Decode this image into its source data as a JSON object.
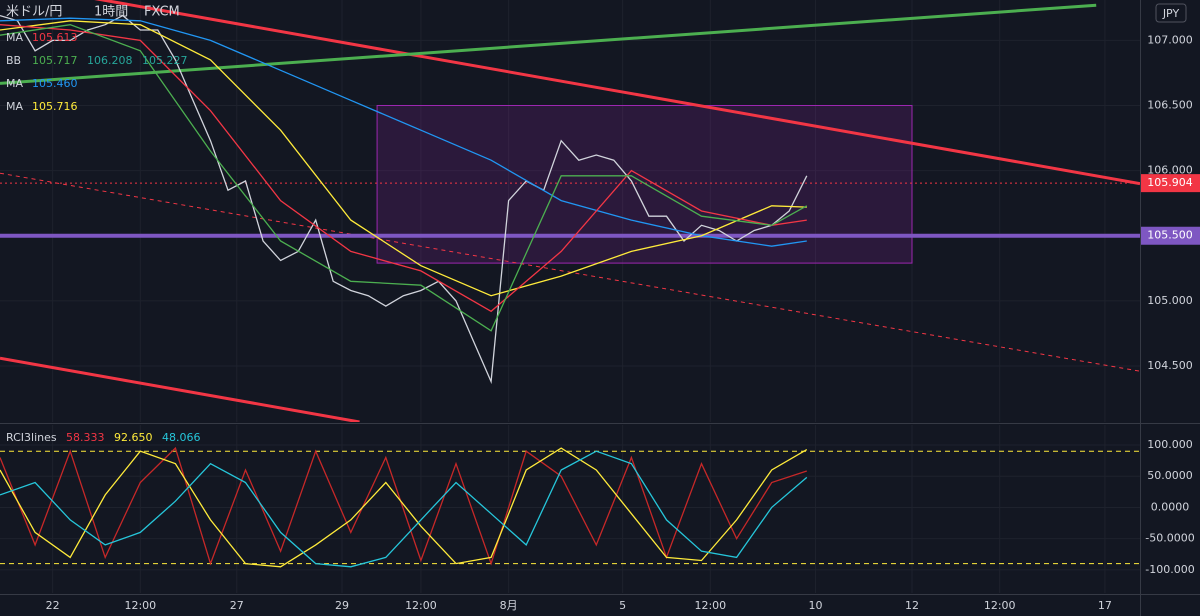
{
  "header": {
    "title": "米ドル/円",
    "interval": "1時間",
    "source": "FXCM",
    "currency": "JPY"
  },
  "chart_data": [
    {
      "type": "line",
      "xlim": [
        0,
        130
      ],
      "xticks": [
        {
          "value": 6,
          "label": "22"
        },
        {
          "value": 16,
          "label": "12:00"
        },
        {
          "value": 27,
          "label": "27"
        },
        {
          "value": 39,
          "label": "29"
        },
        {
          "value": 48,
          "label": "12:00"
        },
        {
          "value": 58,
          "label": "8月"
        },
        {
          "value": 71,
          "label": "5"
        },
        {
          "value": 81,
          "label": "12:00"
        },
        {
          "value": 93,
          "label": "10"
        },
        {
          "value": 104,
          "label": "12"
        },
        {
          "value": 114,
          "label": "12:00"
        },
        {
          "value": 126,
          "label": "17"
        }
      ],
      "ylim": [
        104.07,
        107.31
      ],
      "yticks": [
        {
          "value": 104.5,
          "label": "104.500"
        },
        {
          "value": 105,
          "label": "105.000"
        },
        {
          "value": 105.5,
          "label": "105.500"
        },
        {
          "value": 106,
          "label": "106.000"
        },
        {
          "value": 106.5,
          "label": "106.500"
        },
        {
          "value": 107,
          "label": "107.000"
        }
      ],
      "grid": true,
      "legend": [
        {
          "name": "MA",
          "readouts": [
            {
              "text": "105.613",
              "color": "#f23645"
            }
          ]
        },
        {
          "name": "BB",
          "readouts": [
            {
              "text": "105.717",
              "color": "#4caf50"
            },
            {
              "text": "106.208",
              "color": "#26a69a"
            },
            {
              "text": "105.227",
              "color": "#26a69a"
            }
          ]
        },
        {
          "name": "MA",
          "readouts": [
            {
              "text": "105.460",
              "color": "#2196f3"
            }
          ]
        },
        {
          "name": "MA",
          "readouts": [
            {
              "text": "105.716",
              "color": "#ffeb3b"
            }
          ]
        }
      ],
      "series": [
        {
          "color": "#d1d4dc",
          "x": [
            0,
            2,
            4,
            6,
            8,
            10,
            12,
            14,
            16,
            18,
            20,
            22,
            24,
            26,
            28,
            30,
            32,
            34,
            36,
            38,
            40,
            42,
            44,
            46,
            48,
            50,
            52,
            54,
            56,
            58,
            60,
            62,
            64,
            66,
            68,
            70,
            72,
            74,
            76,
            78,
            80,
            82,
            84,
            86,
            88,
            90,
            92
          ],
          "values": [
            107.19,
            107.15,
            106.92,
            107.0,
            107.0,
            107.08,
            107.12,
            107.19,
            107.08,
            107.08,
            106.85,
            106.54,
            106.23,
            105.85,
            105.92,
            105.46,
            105.31,
            105.38,
            105.62,
            105.15,
            105.08,
            105.04,
            104.96,
            105.04,
            105.08,
            105.15,
            105.0,
            104.69,
            104.38,
            105.77,
            105.92,
            105.85,
            106.23,
            106.08,
            106.12,
            106.08,
            105.92,
            105.65,
            105.65,
            105.46,
            105.58,
            105.54,
            105.46,
            105.54,
            105.58,
            105.69,
            105.96
          ]
        },
        {
          "color": "#2196f3",
          "x": [
            0,
            8,
            16,
            24,
            32,
            40,
            48,
            56,
            64,
            72,
            80,
            88,
            92
          ],
          "values": [
            107.15,
            107.17,
            107.15,
            107.0,
            106.77,
            106.54,
            106.31,
            106.08,
            105.77,
            105.62,
            105.5,
            105.42,
            105.46
          ]
        },
        {
          "color": "#ffeb3b",
          "x": [
            0,
            8,
            16,
            24,
            32,
            40,
            48,
            56,
            64,
            72,
            80,
            88,
            92
          ],
          "values": [
            107.08,
            107.15,
            107.12,
            106.85,
            106.31,
            105.62,
            105.27,
            105.04,
            105.19,
            105.38,
            105.5,
            105.73,
            105.72
          ]
        },
        {
          "color": "#f23645",
          "x": [
            0,
            8,
            16,
            24,
            32,
            40,
            48,
            56,
            64,
            72,
            80,
            88,
            92
          ],
          "values": [
            107.12,
            107.08,
            107.0,
            106.46,
            105.77,
            105.38,
            105.23,
            104.92,
            105.38,
            106.0,
            105.69,
            105.58,
            105.62
          ]
        },
        {
          "color": "#4caf50",
          "x": [
            0,
            8,
            16,
            24,
            32,
            40,
            48,
            56,
            64,
            72,
            80,
            88,
            92
          ],
          "values": [
            107.04,
            107.12,
            106.92,
            106.15,
            105.46,
            105.15,
            105.12,
            104.77,
            105.96,
            105.96,
            105.65,
            105.58,
            105.73
          ]
        }
      ],
      "trendlines": [
        {
          "color": "#f23645",
          "width": 3,
          "dashed": false,
          "x": [
            0,
            130
          ],
          "values": [
            107.45,
            105.9
          ]
        },
        {
          "color": "#4caf50",
          "width": 3,
          "dashed": false,
          "x": [
            0,
            125
          ],
          "values": [
            106.67,
            107.27
          ]
        },
        {
          "color": "#f23645",
          "width": 3,
          "dashed": false,
          "x": [
            0,
            41
          ],
          "values": [
            104.56,
            104.07
          ]
        },
        {
          "color": "#f23645",
          "width": 1,
          "dashed": true,
          "x": [
            0,
            130
          ],
          "values": [
            105.98,
            104.46
          ]
        }
      ],
      "rectangles": [
        {
          "color": "#9c27b0",
          "x": [
            43,
            104
          ],
          "values": [
            105.29,
            106.5
          ]
        }
      ],
      "hlines": [
        {
          "value": 105.5,
          "label": "105.500",
          "color": "#7e57c2",
          "width": 4,
          "dashed": false
        },
        {
          "value": 105.904,
          "label": "105.904",
          "color": "#f23645",
          "width": 1,
          "dashed": true
        }
      ]
    },
    {
      "type": "line",
      "title": "RCI3lines",
      "readouts": [
        {
          "text": "58.333",
          "color": "#f23645"
        },
        {
          "text": "92.650",
          "color": "#ffeb3b"
        },
        {
          "text": "48.066",
          "color": "#26c6da"
        }
      ],
      "ylim": [
        -137,
        132
      ],
      "yticks": [
        {
          "value": -100,
          "label": "-100.000"
        },
        {
          "value": -50,
          "label": "-50.0000"
        },
        {
          "value": 0,
          "label": "0.0000"
        },
        {
          "value": 50,
          "label": "50.0000"
        },
        {
          "value": 100,
          "label": "100.000"
        }
      ],
      "levels": [
        90,
        -90
      ],
      "series": [
        {
          "color": "#c62828",
          "x": [
            0,
            4,
            8,
            12,
            16,
            20,
            24,
            28,
            32,
            36,
            40,
            44,
            48,
            52,
            56,
            60,
            64,
            68,
            72,
            76,
            80,
            84,
            88,
            92
          ],
          "values": [
            80,
            -60,
            90,
            -80,
            40,
            95,
            -90,
            60,
            -70,
            90,
            -40,
            80,
            -85,
            70,
            -90,
            90,
            50,
            -60,
            80,
            -80,
            70,
            -50,
            40,
            58.333
          ]
        },
        {
          "color": "#ffeb3b",
          "x": [
            0,
            4,
            8,
            12,
            16,
            20,
            24,
            28,
            32,
            36,
            40,
            44,
            48,
            52,
            56,
            60,
            64,
            68,
            72,
            76,
            80,
            84,
            88,
            92
          ],
          "values": [
            60,
            -40,
            -80,
            20,
            90,
            70,
            -20,
            -90,
            -95,
            -60,
            -20,
            40,
            -30,
            -90,
            -80,
            60,
            95,
            60,
            -10,
            -80,
            -85,
            -20,
            60,
            92.65
          ]
        },
        {
          "color": "#26c6da",
          "x": [
            0,
            4,
            8,
            12,
            16,
            20,
            24,
            28,
            32,
            36,
            40,
            44,
            48,
            52,
            56,
            60,
            64,
            68,
            72,
            76,
            80,
            84,
            88,
            92
          ],
          "values": [
            20,
            40,
            -20,
            -60,
            -40,
            10,
            70,
            40,
            -40,
            -90,
            -95,
            -80,
            -20,
            40,
            -10,
            -60,
            60,
            90,
            70,
            -20,
            -70,
            -80,
            0,
            48.066
          ]
        }
      ]
    }
  ]
}
